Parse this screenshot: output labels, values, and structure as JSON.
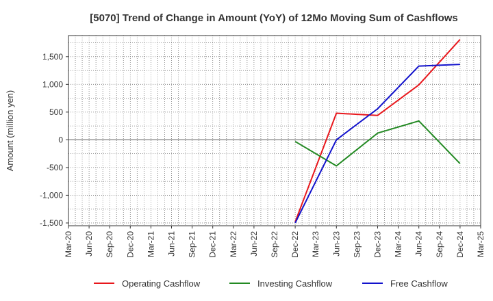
{
  "chart_data": {
    "type": "line",
    "title": "[5070]  Trend of Change in Amount (YoY) of 12Mo Moving Sum of Cashflows",
    "ylabel": "Amount (million yen)",
    "xlabel": "",
    "ylim": [
      -1550,
      1880
    ],
    "y_ticks": [
      1500,
      1000,
      500,
      0,
      -500,
      -1000,
      -1500
    ],
    "y_tick_labels": [
      "1,500",
      "1,000",
      "500",
      "0",
      "-500",
      "-1,000",
      "-1,500"
    ],
    "x_tick_labels": [
      "Mar-20",
      "Jun-20",
      "Sep-20",
      "Dec-20",
      "Mar-21",
      "Jun-21",
      "Sep-21",
      "Dec-21",
      "Mar-22",
      "Jun-22",
      "Sep-22",
      "Dec-22",
      "Mar-23",
      "Jun-23",
      "Sep-23",
      "Dec-23",
      "Mar-24",
      "Jun-24",
      "Sep-24",
      "Dec-24",
      "Mar-25"
    ],
    "grid": true,
    "legend_position": "bottom",
    "series": [
      {
        "name": "Operating Cashflow",
        "color": "#e8171c",
        "x": [
          "Dec-22",
          "Jun-23",
          "Dec-23",
          "Jun-24",
          "Dec-24"
        ],
        "values": [
          -1480,
          480,
          440,
          990,
          1810
        ]
      },
      {
        "name": "Investing Cashflow",
        "color": "#238a23",
        "x": [
          "Dec-22",
          "Jun-23",
          "Dec-23",
          "Jun-24",
          "Dec-24"
        ],
        "values": [
          -30,
          -470,
          120,
          340,
          -430
        ]
      },
      {
        "name": "Free Cashflow",
        "color": "#1212cc",
        "x": [
          "Dec-22",
          "Jun-23",
          "Dec-23",
          "Jun-24",
          "Dec-24"
        ],
        "values": [
          -1500,
          0,
          560,
          1330,
          1360
        ]
      }
    ]
  }
}
